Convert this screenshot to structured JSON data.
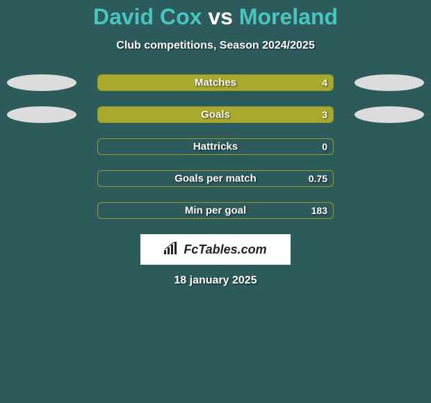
{
  "title": {
    "player1": "David Cox",
    "vs": "vs",
    "player2": "Moreland",
    "player1_color": "#49c5c1",
    "vs_color": "#ffffff",
    "player2_color": "#49c5c1",
    "font_size": 32
  },
  "subtitle": "Club competitions, Season 2024/2025",
  "background_color": "#2d5a5a",
  "bar_fill_color": "#a8a82e",
  "bar_border_color": "#9a9a2a",
  "ellipse_color": "#dcdcdc",
  "rows": [
    {
      "label": "Matches",
      "left_val": "",
      "right_val": "4",
      "left_fill_pct": 50,
      "right_fill_pct": 50,
      "show_left_ellipse": true,
      "show_right_ellipse": true
    },
    {
      "label": "Goals",
      "left_val": "",
      "right_val": "3",
      "left_fill_pct": 50,
      "right_fill_pct": 50,
      "show_left_ellipse": true,
      "show_right_ellipse": true
    },
    {
      "label": "Hattricks",
      "left_val": "",
      "right_val": "0",
      "left_fill_pct": 0,
      "right_fill_pct": 0,
      "show_left_ellipse": false,
      "show_right_ellipse": false
    },
    {
      "label": "Goals per match",
      "left_val": "",
      "right_val": "0.75",
      "left_fill_pct": 0,
      "right_fill_pct": 0,
      "show_left_ellipse": false,
      "show_right_ellipse": false
    },
    {
      "label": "Min per goal",
      "left_val": "",
      "right_val": "183",
      "left_fill_pct": 0,
      "right_fill_pct": 0,
      "show_left_ellipse": false,
      "show_right_ellipse": false
    }
  ],
  "logo": {
    "text": "FcTables.com"
  },
  "date": "18 january 2025"
}
